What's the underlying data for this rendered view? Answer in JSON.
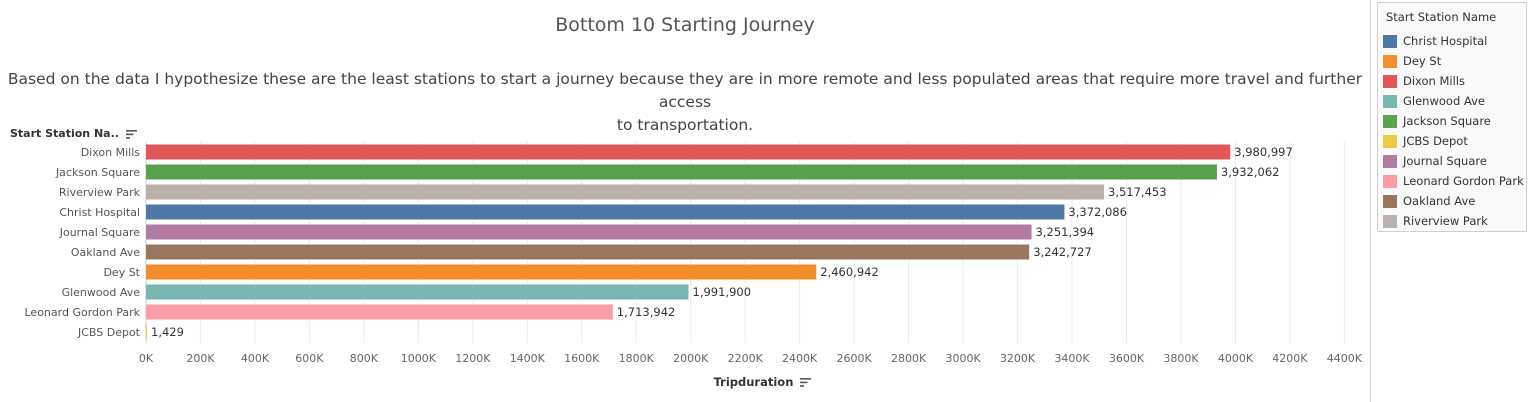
{
  "chart_data": {
    "type": "bar",
    "orientation": "horizontal",
    "title": "Bottom 10 Starting Journey",
    "subtitle_lines": [
      "Based on the data I hypothesize these are the least stations to start a journey because they are in more remote and less populated areas that require more travel and further access",
      "to transportation."
    ],
    "ylabel": "Start Station Na..",
    "xlabel": "Tripduration",
    "categories": [
      "Dixon Mills",
      "Jackson Square",
      "Riverview Park",
      "Christ Hospital",
      "Journal Square",
      "Oakland Ave",
      "Dey St",
      "Glenwood Ave",
      "Leonard Gordon Park",
      "JCBS Depot"
    ],
    "values": [
      3980997,
      3932062,
      3517453,
      3372086,
      3251394,
      3242727,
      2460942,
      1991900,
      1713942,
      1429
    ],
    "value_labels": [
      "3,980,997",
      "3,932,062",
      "3,517,453",
      "3,372,086",
      "3,251,394",
      "3,242,727",
      "2,460,942",
      "1,991,900",
      "1,713,942",
      "1,429"
    ],
    "colors": [
      "#E15759",
      "#59A14F",
      "#BAB0AC",
      "#4E79A7",
      "#B07AA1",
      "#9C755F",
      "#F28E2B",
      "#76B7B2",
      "#FF9DA7",
      "#EDC948"
    ],
    "xlim": [
      0,
      4450000
    ],
    "xticks": [
      0,
      200000,
      400000,
      600000,
      800000,
      1000000,
      1200000,
      1400000,
      1600000,
      1800000,
      2000000,
      2200000,
      2400000,
      2600000,
      2800000,
      3000000,
      3200000,
      3400000,
      3600000,
      3800000,
      4000000,
      4200000,
      4400000
    ],
    "xtick_labels": [
      "0K",
      "200K",
      "400K",
      "600K",
      "800K",
      "1000K",
      "1200K",
      "1400K",
      "1600K",
      "1800K",
      "2000K",
      "2200K",
      "2400K",
      "2600K",
      "2800K",
      "3000K",
      "3200K",
      "3400K",
      "3600K",
      "3800K",
      "4000K",
      "4200K",
      "4400K"
    ],
    "grid": "vertical",
    "legend": {
      "title": "Start Station Name",
      "position": "right",
      "items": [
        {
          "label": "Christ Hospital",
          "color": "#4E79A7"
        },
        {
          "label": "Dey St",
          "color": "#F28E2B"
        },
        {
          "label": "Dixon Mills",
          "color": "#E15759"
        },
        {
          "label": "Glenwood Ave",
          "color": "#76B7B2"
        },
        {
          "label": "Jackson Square",
          "color": "#59A14F"
        },
        {
          "label": "JCBS Depot",
          "color": "#EDC948"
        },
        {
          "label": "Journal Square",
          "color": "#B07AA1"
        },
        {
          "label": "Leonard Gordon Park",
          "color": "#FF9DA7"
        },
        {
          "label": "Oakland Ave",
          "color": "#9C755F"
        },
        {
          "label": "Riverview Park",
          "color": "#BAB0AC"
        }
      ]
    }
  }
}
